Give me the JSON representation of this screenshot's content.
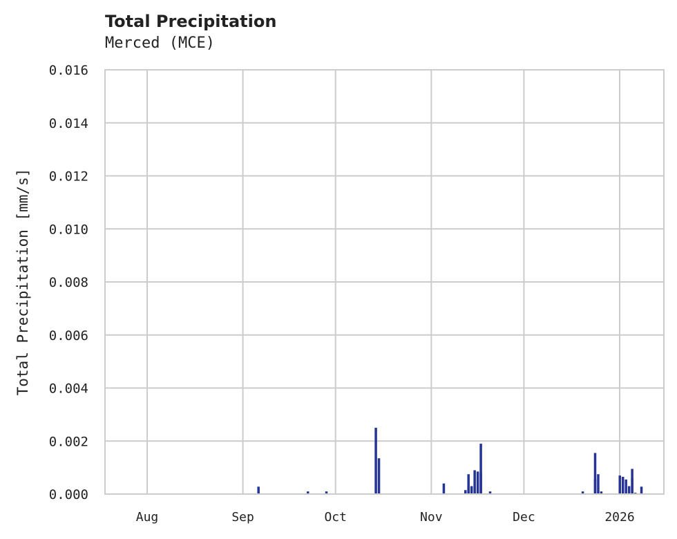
{
  "header": {
    "title": "Total Precipitation",
    "subtitle": "Merced (MCE)"
  },
  "colors": {
    "bar": "#253494",
    "grid": "#cccccc",
    "text": "#222222"
  },
  "chart_data": {
    "type": "bar",
    "title": "Total Precipitation",
    "subtitle": "Merced (MCE)",
    "xlabel": "",
    "ylabel": "Total Precipitation [mm/s]",
    "ylim": [
      0,
      0.016
    ],
    "yticks": [
      "0.000",
      "0.002",
      "0.004",
      "0.006",
      "0.008",
      "0.010",
      "0.012",
      "0.014",
      "0.016"
    ],
    "xticks": [
      "Aug",
      "Sep",
      "Oct",
      "Nov",
      "Dec",
      "2026"
    ],
    "grid": true,
    "legend": null,
    "series": [
      {
        "name": "Total Precipitation",
        "points": [
          {
            "date": "2025-09-06",
            "value": 0.00028
          },
          {
            "date": "2025-09-22",
            "value": 0.0001
          },
          {
            "date": "2025-09-28",
            "value": 0.0001
          },
          {
            "date": "2025-10-14",
            "value": 0.0025
          },
          {
            "date": "2025-10-15",
            "value": 0.00135
          },
          {
            "date": "2025-11-05",
            "value": 0.0004
          },
          {
            "date": "2025-11-12",
            "value": 0.00015
          },
          {
            "date": "2025-11-13",
            "value": 0.0003
          },
          {
            "date": "2025-11-13",
            "value": 0.00075
          },
          {
            "date": "2025-11-14",
            "value": 0.0003
          },
          {
            "date": "2025-11-15",
            "value": 0.0009
          },
          {
            "date": "2025-11-16",
            "value": 0.00085
          },
          {
            "date": "2025-11-17",
            "value": 0.0019
          },
          {
            "date": "2025-11-17",
            "value": 0.0008
          },
          {
            "date": "2025-11-20",
            "value": 0.0001
          },
          {
            "date": "2025-12-20",
            "value": 0.0001
          },
          {
            "date": "2025-12-24",
            "value": 0.00055
          },
          {
            "date": "2025-12-24",
            "value": 0.00155
          },
          {
            "date": "2025-12-25",
            "value": 0.00075
          },
          {
            "date": "2025-12-26",
            "value": 0.0001
          },
          {
            "date": "2026-01-01",
            "value": 0.0007
          },
          {
            "date": "2026-01-02",
            "value": 0.00065
          },
          {
            "date": "2026-01-03",
            "value": 0.00055
          },
          {
            "date": "2026-01-04",
            "value": 0.0003
          },
          {
            "date": "2026-01-05",
            "value": 0.00095
          },
          {
            "date": "2026-01-05",
            "value": 0.0006
          },
          {
            "date": "2026-01-06",
            "value": 5e-05
          },
          {
            "date": "2026-01-08",
            "value": 0.00028
          }
        ]
      }
    ]
  }
}
